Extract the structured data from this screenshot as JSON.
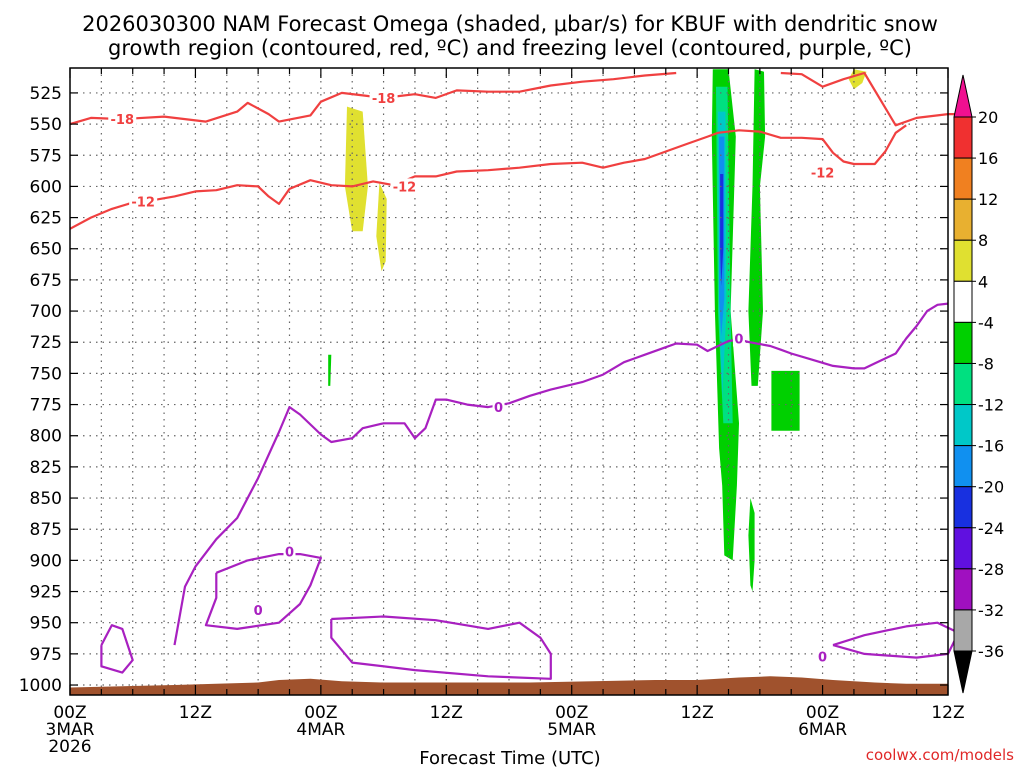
{
  "chart_data": {
    "type": "contour",
    "title_line1": "2026030300 NAM Forecast Omega (shaded, μbar/s) for KBUF with dendritic snow",
    "title_line2": "growth region (contoured, red, ºC) and freezing level (contoured, purple, ºC)",
    "xlabel": "Forecast Time (UTC)",
    "credit": "coolwx.com/models",
    "x_range_hours": [
      0,
      84
    ],
    "y_range_mb": [
      1008,
      505
    ],
    "x_ticks": [
      {
        "h": 0,
        "lines": [
          "00Z",
          "3MAR",
          "2026"
        ]
      },
      {
        "h": 12,
        "lines": [
          "12Z"
        ]
      },
      {
        "h": 24,
        "lines": [
          "00Z",
          "4MAR"
        ]
      },
      {
        "h": 36,
        "lines": [
          "12Z"
        ]
      },
      {
        "h": 48,
        "lines": [
          "00Z",
          "5MAR"
        ]
      },
      {
        "h": 60,
        "lines": [
          "12Z"
        ]
      },
      {
        "h": 72,
        "lines": [
          "00Z",
          "6MAR"
        ]
      },
      {
        "h": 84,
        "lines": [
          "12Z"
        ]
      }
    ],
    "y_ticks": [
      525,
      550,
      575,
      600,
      625,
      650,
      675,
      700,
      725,
      750,
      775,
      800,
      825,
      850,
      875,
      900,
      925,
      950,
      975,
      1000
    ],
    "colorbar": {
      "labels": [
        "20",
        "16",
        "12",
        "8",
        "4",
        "-4",
        "-8",
        "-12",
        "-16",
        "-20",
        "-24",
        "-28",
        "-32",
        "-36"
      ],
      "colors": [
        "#f01090",
        "#f03030",
        "#f08020",
        "#e8b030",
        "#e0e030",
        "#ffffff",
        "#00d000",
        "#00e080",
        "#00c8c8",
        "#1090f0",
        "#1830e0",
        "#6010e0",
        "#a010c0",
        "#a8a8a8",
        "#000000"
      ]
    },
    "contours": [
      {
        "name": "-18C isotherm",
        "color": "#f04040",
        "label": "-18",
        "points": [
          [
            0,
            550
          ],
          [
            2,
            545
          ],
          [
            5,
            546
          ],
          [
            9,
            544
          ],
          [
            13,
            548
          ],
          [
            16,
            540
          ],
          [
            17,
            533
          ],
          [
            19,
            542
          ],
          [
            20,
            548
          ],
          [
            23,
            543
          ],
          [
            24,
            532
          ],
          [
            26,
            525
          ],
          [
            28,
            527
          ],
          [
            30,
            529
          ],
          [
            33,
            526
          ],
          [
            35,
            529
          ],
          [
            37,
            523
          ],
          [
            40,
            524
          ],
          [
            43,
            524
          ],
          [
            46,
            519
          ],
          [
            49,
            516
          ],
          [
            52,
            514
          ],
          [
            55,
            511
          ],
          [
            58,
            509
          ]
        ],
        "labels_at": [
          [
            5,
            546
          ],
          [
            30,
            529
          ]
        ]
      },
      {
        "name": "-18C isotherm (east)",
        "color": "#f04040",
        "label": "-18",
        "points": [
          [
            68,
            509
          ],
          [
            70,
            510
          ],
          [
            72,
            520
          ],
          [
            74,
            514
          ],
          [
            76,
            509
          ],
          [
            79,
            551
          ],
          [
            81,
            545
          ],
          [
            84,
            542
          ],
          [
            85,
            542
          ]
        ],
        "labels_at": []
      },
      {
        "name": "-12C isotherm",
        "color": "#f04040",
        "label": "-12",
        "points": [
          [
            0,
            634
          ],
          [
            2,
            625
          ],
          [
            4,
            618
          ],
          [
            6,
            613
          ],
          [
            8,
            611
          ],
          [
            10,
            608
          ],
          [
            12,
            604
          ],
          [
            14,
            603
          ],
          [
            16,
            599
          ],
          [
            18,
            600
          ],
          [
            19,
            608
          ],
          [
            20,
            614
          ],
          [
            21,
            602
          ],
          [
            23,
            595
          ],
          [
            25,
            599
          ],
          [
            27,
            600
          ],
          [
            29,
            596
          ],
          [
            31,
            599
          ],
          [
            33,
            592
          ],
          [
            35,
            592
          ],
          [
            37,
            588
          ],
          [
            40,
            587
          ],
          [
            43,
            585
          ],
          [
            46,
            582
          ],
          [
            49,
            581
          ],
          [
            51,
            585
          ],
          [
            53,
            581
          ],
          [
            55,
            578
          ],
          [
            57,
            572
          ],
          [
            59,
            566
          ],
          [
            61,
            560
          ],
          [
            62,
            557
          ],
          [
            64,
            555
          ],
          [
            66,
            556
          ],
          [
            68,
            561
          ],
          [
            70,
            561
          ],
          [
            72,
            562
          ],
          [
            73,
            573
          ],
          [
            74,
            580
          ],
          [
            75,
            582
          ],
          [
            77,
            582
          ],
          [
            78,
            572
          ],
          [
            79,
            557
          ],
          [
            80,
            551
          ]
        ],
        "labels_at": [
          [
            7,
            612
          ],
          [
            32,
            600
          ],
          [
            72,
            589
          ]
        ]
      },
      {
        "name": "0C freezing level",
        "color": "#a820c0",
        "label": "0",
        "points": [
          [
            10,
            968
          ],
          [
            11,
            921
          ],
          [
            12,
            905
          ],
          [
            14,
            883
          ],
          [
            16,
            866
          ],
          [
            18,
            834
          ],
          [
            20,
            797
          ],
          [
            21,
            777
          ],
          [
            22,
            783
          ],
          [
            24,
            799
          ],
          [
            25,
            805
          ],
          [
            27,
            802
          ],
          [
            28,
            794
          ],
          [
            30,
            790
          ],
          [
            32,
            790
          ],
          [
            33,
            802
          ],
          [
            34,
            794
          ],
          [
            35,
            771
          ],
          [
            36,
            771
          ],
          [
            38,
            775
          ],
          [
            40,
            777
          ],
          [
            42,
            774
          ],
          [
            44,
            768
          ],
          [
            46,
            763
          ],
          [
            49,
            757
          ],
          [
            51,
            751
          ],
          [
            53,
            741
          ],
          [
            55,
            735
          ],
          [
            57,
            729
          ],
          [
            58,
            726
          ],
          [
            60,
            727
          ],
          [
            61,
            732
          ],
          [
            63,
            724
          ],
          [
            64,
            723
          ],
          [
            65,
            725
          ],
          [
            67,
            728
          ],
          [
            68,
            731
          ],
          [
            69,
            734
          ],
          [
            71,
            739
          ],
          [
            73,
            744
          ],
          [
            75,
            746
          ],
          [
            76,
            746
          ],
          [
            77,
            742
          ],
          [
            79,
            734
          ],
          [
            80,
            722
          ],
          [
            81,
            712
          ],
          [
            82,
            700
          ],
          [
            83,
            695
          ],
          [
            84,
            694
          ]
        ],
        "labels_at": [
          [
            41,
            777
          ],
          [
            64,
            722
          ]
        ]
      },
      {
        "name": "0C small loop",
        "color": "#a820c0",
        "label": "0",
        "points": [
          [
            3,
            968
          ],
          [
            4,
            952
          ],
          [
            5,
            955
          ],
          [
            6,
            980
          ],
          [
            5,
            990
          ],
          [
            3,
            985
          ],
          [
            3,
            968
          ]
        ],
        "labels_at": []
      },
      {
        "name": "0C loop near 4MAR",
        "color": "#a820c0",
        "label": "0",
        "points": [
          [
            14,
            910
          ],
          [
            17,
            900
          ],
          [
            20,
            895
          ],
          [
            22,
            895
          ],
          [
            24,
            898
          ],
          [
            23,
            920
          ],
          [
            22,
            935
          ],
          [
            20,
            950
          ],
          [
            16,
            955
          ],
          [
            13,
            952
          ],
          [
            14,
            930
          ],
          [
            14,
            910
          ]
        ],
        "labels_at": [
          [
            18,
            940
          ],
          [
            21,
            893
          ]
        ]
      },
      {
        "name": "0C low loop",
        "color": "#a820c0",
        "label": "0",
        "points": [
          [
            25,
            947
          ],
          [
            30,
            945
          ],
          [
            35,
            948
          ],
          [
            40,
            955
          ],
          [
            43,
            950
          ],
          [
            45,
            962
          ],
          [
            46,
            975
          ],
          [
            46,
            995
          ],
          [
            40,
            993
          ],
          [
            33,
            988
          ],
          [
            27,
            982
          ],
          [
            25,
            962
          ],
          [
            25,
            947
          ]
        ],
        "labels_at": []
      },
      {
        "name": "0C east low",
        "color": "#a820c0",
        "label": "0",
        "points": [
          [
            73,
            968
          ],
          [
            76,
            960
          ],
          [
            80,
            953
          ],
          [
            83,
            950
          ],
          [
            85,
            958
          ],
          [
            84,
            975
          ],
          [
            81,
            978
          ],
          [
            76,
            975
          ],
          [
            73,
            968
          ]
        ],
        "labels_at": [
          [
            72,
            977
          ]
        ]
      }
    ],
    "shaded_regions": [
      {
        "value_class": "4 to 8",
        "color": "#e0e030",
        "points": [
          [
            26.5,
            536
          ],
          [
            28,
            540
          ],
          [
            28.5,
            600
          ],
          [
            28,
            636
          ],
          [
            27,
            636
          ],
          [
            26.3,
            600
          ],
          [
            26.5,
            536
          ]
        ]
      },
      {
        "value_class": "4 to 8",
        "color": "#e0e030",
        "points": [
          [
            29.6,
            597
          ],
          [
            30.3,
            610
          ],
          [
            30.2,
            660
          ],
          [
            29.8,
            668
          ],
          [
            29.3,
            640
          ],
          [
            29.6,
            597
          ]
        ]
      },
      {
        "value_class": "4 to 8",
        "color": "#e0e030",
        "points": [
          [
            75,
            506
          ],
          [
            76.2,
            508
          ],
          [
            75.8,
            517
          ],
          [
            75,
            522
          ],
          [
            74.5,
            514
          ],
          [
            75,
            506
          ]
        ]
      },
      {
        "value_class": "-4 to -8",
        "color": "#00d000",
        "points": [
          [
            61.5,
            506
          ],
          [
            63,
            506
          ],
          [
            63.7,
            560
          ],
          [
            63.2,
            700
          ],
          [
            64,
            790
          ],
          [
            63.8,
            840
          ],
          [
            63.4,
            900
          ],
          [
            62.6,
            896
          ],
          [
            62.4,
            840
          ],
          [
            62.1,
            810
          ],
          [
            61.7,
            700
          ],
          [
            61.4,
            560
          ],
          [
            61.5,
            506
          ]
        ]
      },
      {
        "value_class": "-8 to -12",
        "color": "#00e080",
        "points": [
          [
            61.8,
            520
          ],
          [
            62.9,
            520
          ],
          [
            63.2,
            700
          ],
          [
            63.4,
            790
          ],
          [
            62.5,
            790
          ],
          [
            62.0,
            700
          ],
          [
            61.8,
            520
          ]
        ]
      },
      {
        "value_class": "-12 to -16",
        "color": "#00c8c8",
        "points": [
          [
            62,
            540
          ],
          [
            62.7,
            540
          ],
          [
            62.8,
            700
          ],
          [
            62.4,
            770
          ],
          [
            62.1,
            700
          ],
          [
            62,
            540
          ]
        ]
      },
      {
        "value_class": "-16 to -20",
        "color": "#1090f0",
        "points": [
          [
            62.1,
            560
          ],
          [
            62.6,
            560
          ],
          [
            62.6,
            690
          ],
          [
            62.3,
            720
          ],
          [
            62.1,
            690
          ],
          [
            62.1,
            560
          ]
        ]
      },
      {
        "value_class": "-20 to -24",
        "color": "#1830e0",
        "points": [
          [
            62.2,
            590
          ],
          [
            62.5,
            590
          ],
          [
            62.5,
            650
          ],
          [
            62.3,
            680
          ],
          [
            62.2,
            650
          ],
          [
            62.2,
            590
          ]
        ]
      },
      {
        "value_class": "-4 to -8",
        "color": "#00d000",
        "points": [
          [
            65.5,
            506
          ],
          [
            66.4,
            508
          ],
          [
            66.5,
            560
          ],
          [
            66,
            600
          ],
          [
            66.3,
            700
          ],
          [
            65.8,
            760
          ],
          [
            65.2,
            760
          ],
          [
            64.9,
            700
          ],
          [
            65.3,
            600
          ],
          [
            65.5,
            506
          ]
        ]
      },
      {
        "value_class": "-4 to -8",
        "color": "#00d000",
        "points": [
          [
            67.1,
            748
          ],
          [
            69.8,
            748
          ],
          [
            69.8,
            796
          ],
          [
            67.1,
            796
          ],
          [
            67.1,
            748
          ]
        ]
      },
      {
        "value_class": "-4 to -8",
        "color": "#00d000",
        "points": [
          [
            24.7,
            735
          ],
          [
            25,
            735
          ],
          [
            24.9,
            760
          ],
          [
            24.7,
            760
          ],
          [
            24.7,
            735
          ]
        ]
      },
      {
        "value_class": "-4 to -8",
        "color": "#00d000",
        "points": [
          [
            65.1,
            850
          ],
          [
            65.5,
            862
          ],
          [
            65.5,
            900
          ],
          [
            65.3,
            925
          ],
          [
            65.1,
            920
          ],
          [
            64.9,
            880
          ],
          [
            65.1,
            850
          ]
        ]
      }
    ]
  }
}
